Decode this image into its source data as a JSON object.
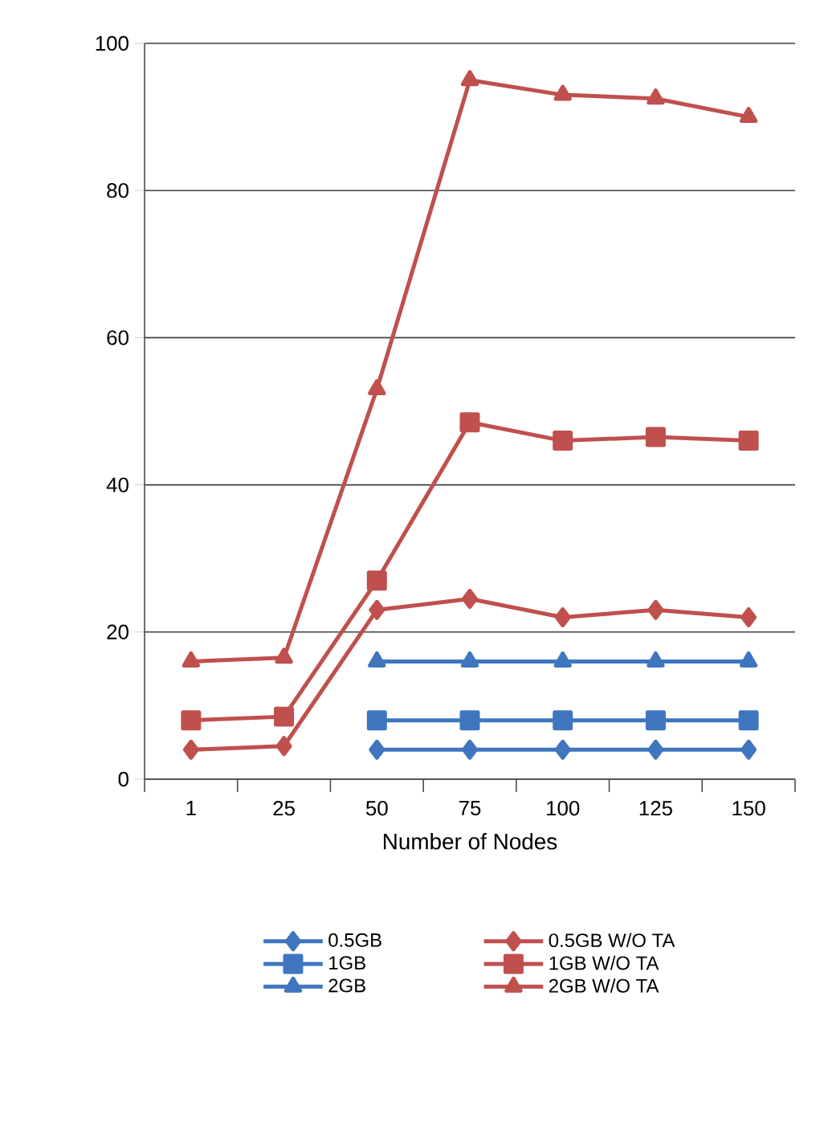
{
  "chart_data": {
    "type": "line",
    "xlabel": "Number of Nodes",
    "categories": [
      "1",
      "25",
      "50",
      "75",
      "100",
      "125",
      "150"
    ],
    "ylim": [
      0,
      100
    ],
    "yticks": [
      0,
      20,
      40,
      60,
      80,
      100
    ],
    "grid": "y",
    "legend": "bottom",
    "line_style": "solid",
    "series": [
      {
        "name": "0.5GB",
        "color": "#3f76bf",
        "marker": "diamond",
        "values": [
          null,
          null,
          4,
          4,
          4,
          4,
          4
        ]
      },
      {
        "name": "1GB",
        "color": "#3f76bf",
        "marker": "square",
        "values": [
          null,
          null,
          8,
          8,
          8,
          8,
          8
        ]
      },
      {
        "name": "2GB",
        "color": "#3f76bf",
        "marker": "triangle",
        "values": [
          null,
          null,
          16,
          16,
          16,
          16,
          16
        ]
      },
      {
        "name": "0.5GB W/O TA",
        "color": "#c0504d",
        "marker": "diamond",
        "values": [
          4,
          4.5,
          23,
          24.5,
          22,
          23,
          22
        ]
      },
      {
        "name": "1GB W/O TA",
        "color": "#c0504d",
        "marker": "square",
        "values": [
          8,
          8.5,
          27,
          48.5,
          46,
          46.5,
          46
        ]
      },
      {
        "name": "2GB W/O TA",
        "color": "#c0504d",
        "marker": "triangle",
        "values": [
          16,
          16.5,
          53,
          95,
          93,
          92.5,
          90
        ]
      }
    ]
  }
}
